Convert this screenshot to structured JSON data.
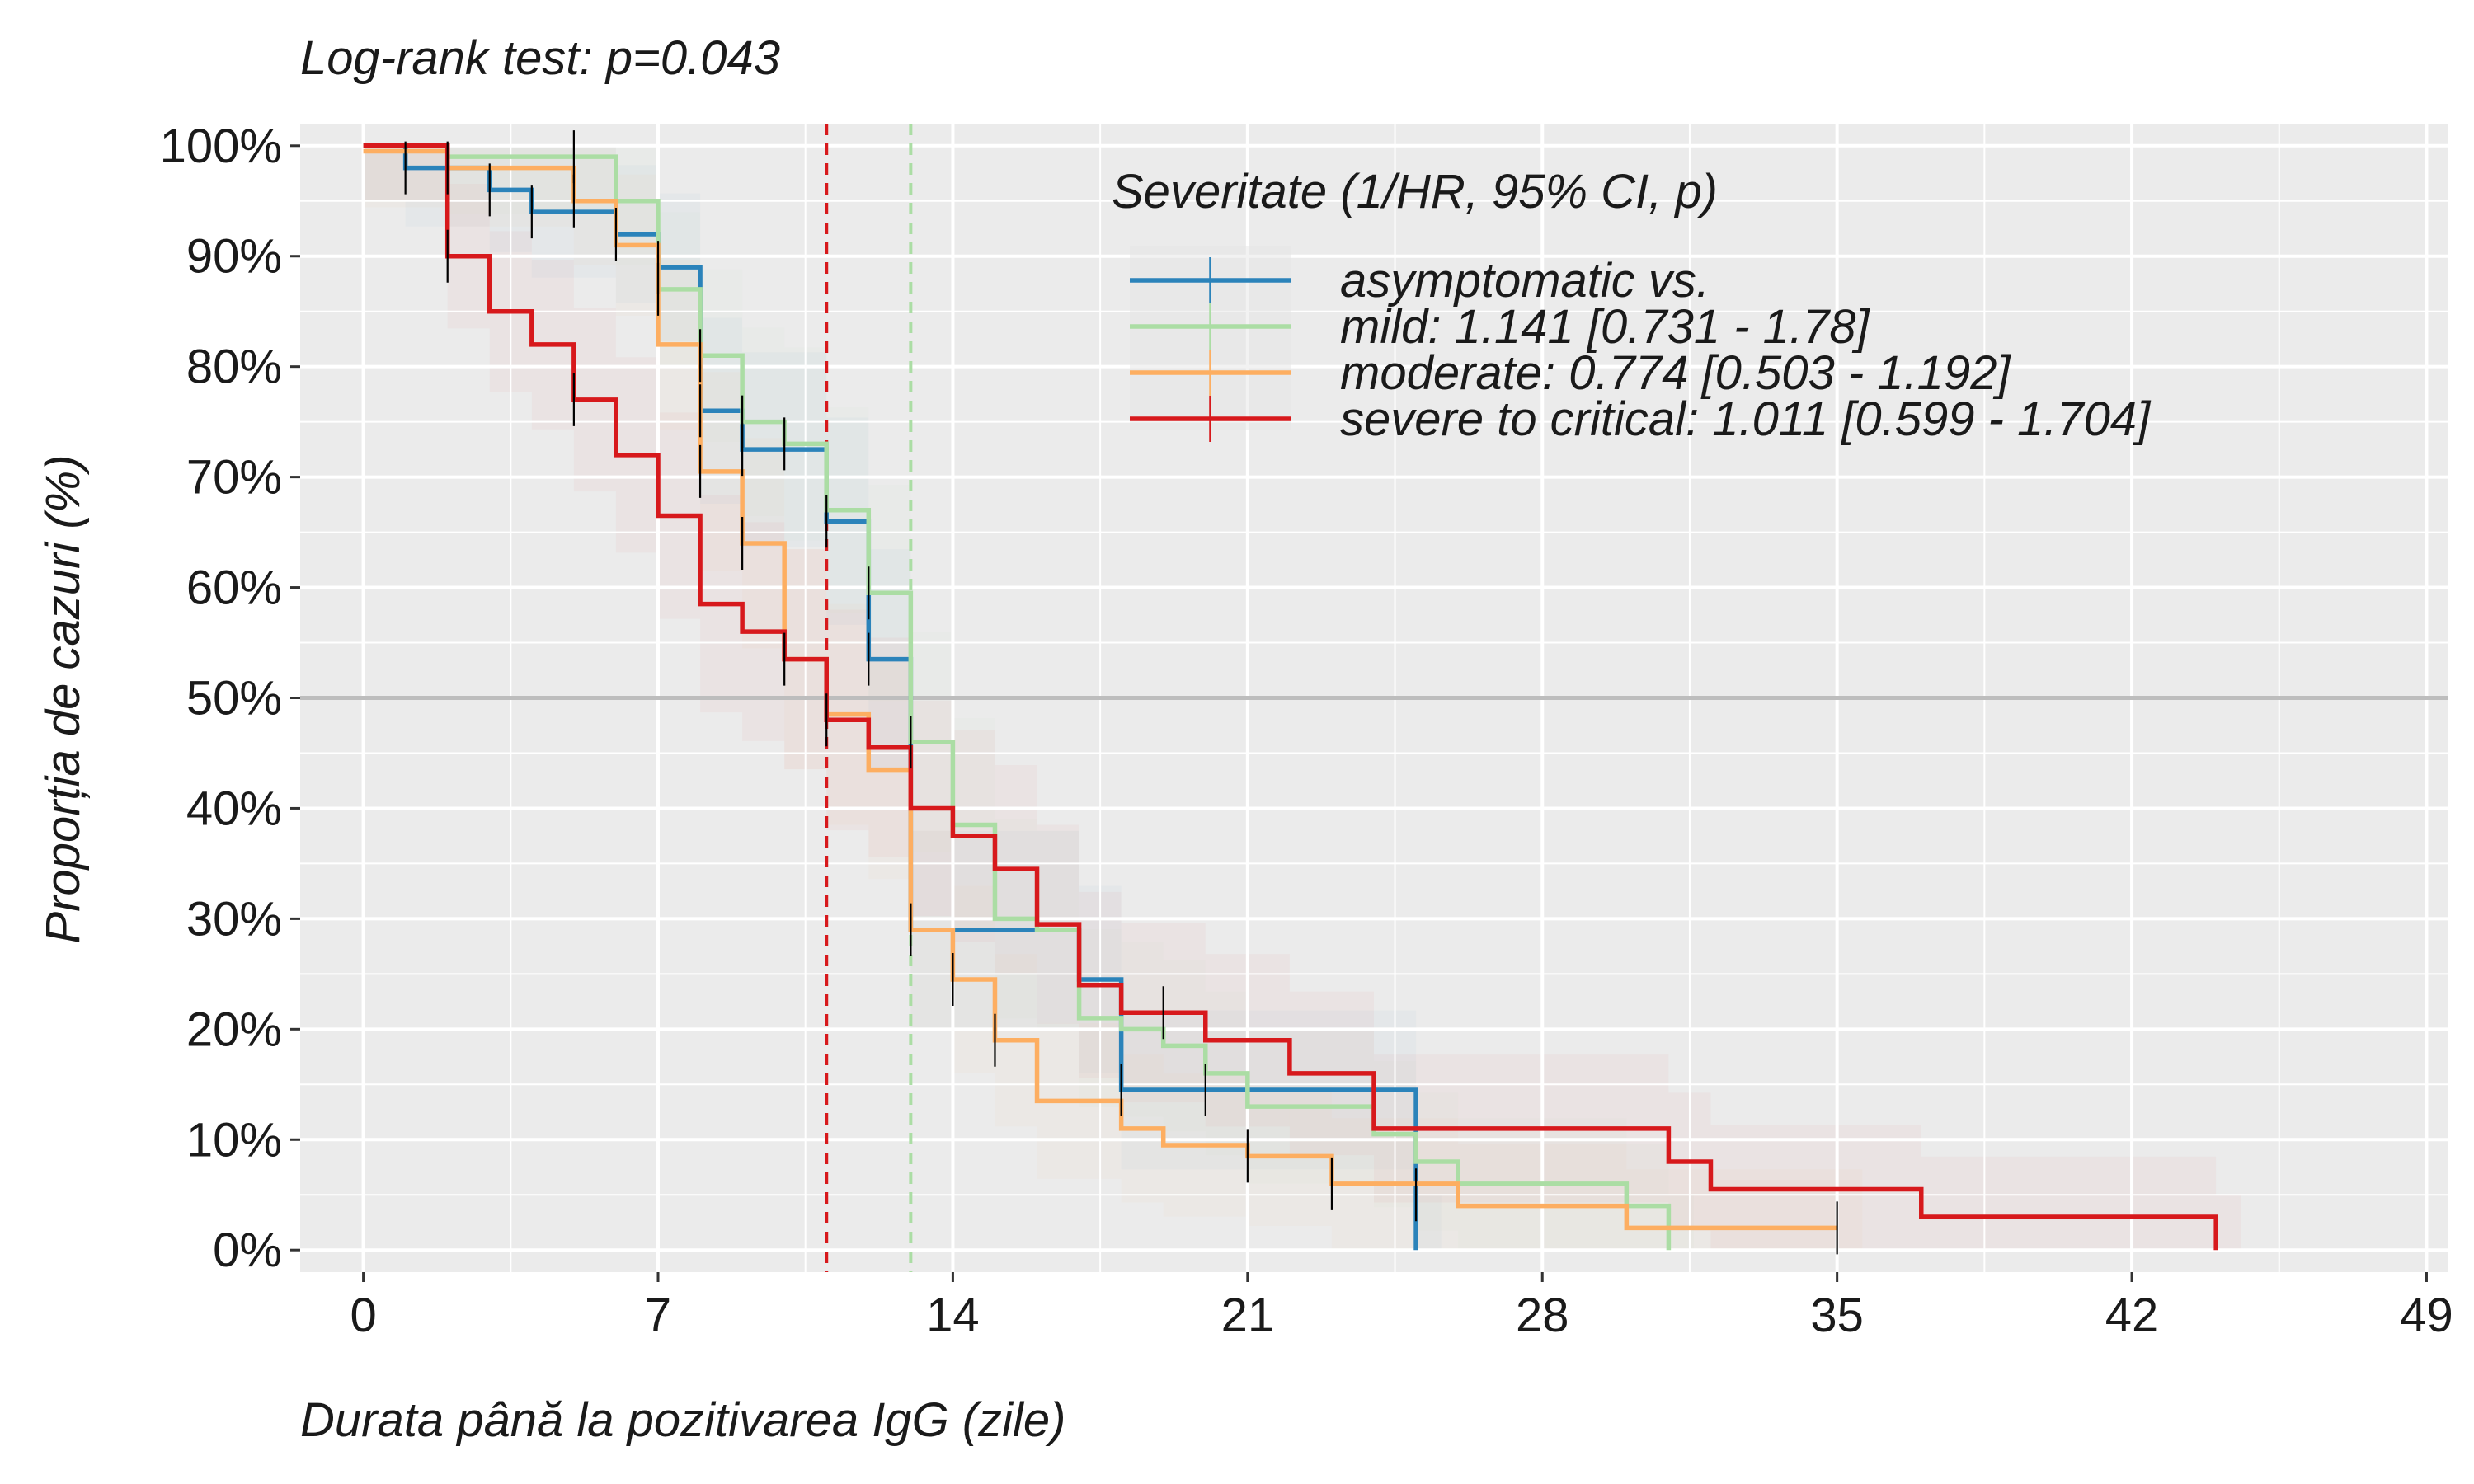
{
  "chart_data": {
    "type": "line",
    "subtitle": "Log-rank test: p=0.043",
    "xlabel": "Durata până la pozitivarea IgG (zile)",
    "ylabel": "Proporția de cazuri (%)",
    "xlim": [
      -1.5,
      49.5
    ],
    "ylim": [
      -0.02,
      1.02
    ],
    "x_ticks": [
      0,
      7,
      14,
      21,
      28,
      35,
      42,
      49
    ],
    "x_tick_labels": [
      "0",
      "7",
      "14",
      "21",
      "28",
      "35",
      "42",
      "49"
    ],
    "y_ticks": [
      0,
      0.1,
      0.2,
      0.3,
      0.4,
      0.5,
      0.6,
      0.7,
      0.8,
      0.9,
      1.0
    ],
    "y_tick_labels": [
      "0%",
      "10%",
      "20%",
      "30%",
      "40%",
      "50%",
      "60%",
      "70%",
      "80%",
      "90%",
      "100%"
    ],
    "grid": true,
    "reference_line_y": 0.5,
    "legend": {
      "title": "Severitate (1/HR, 95% CI, p)",
      "position": "top-right"
    },
    "colors": {
      "panel_background": "#ebebeb",
      "grid_line": "#ffffff",
      "reference_line": "#bdbdbd",
      "censor_tick": "#000000"
    },
    "series": [
      {
        "name": "asymptomatic vs.",
        "color": "#2b83ba",
        "steps": [
          [
            0,
            1.0
          ],
          [
            1,
            0.98
          ],
          [
            3,
            0.96
          ],
          [
            4,
            0.94
          ],
          [
            6,
            0.92
          ],
          [
            7,
            0.89
          ],
          [
            8,
            0.76
          ],
          [
            9,
            0.725
          ],
          [
            11,
            0.66
          ],
          [
            12,
            0.535
          ],
          [
            13,
            0.29
          ],
          [
            16,
            0.29
          ],
          [
            17,
            0.245
          ],
          [
            18,
            0.145
          ],
          [
            25,
            0.0
          ]
        ],
        "censored": [
          [
            1,
            0.98
          ],
          [
            3,
            0.96
          ],
          [
            4,
            0.94
          ],
          [
            6,
            0.92
          ],
          [
            7,
            0.89
          ],
          [
            8,
            0.76
          ],
          [
            9,
            0.725
          ],
          [
            11,
            0.66
          ],
          [
            12,
            0.535
          ],
          [
            13,
            0.29
          ],
          [
            18,
            0.145
          ],
          [
            20,
            0.145
          ],
          [
            25,
            0.05
          ]
        ],
        "median_line": null
      },
      {
        "name": "mild: 1.141 [0.731 - 1.78]",
        "color": "#abdda4",
        "steps": [
          [
            0,
            1.0
          ],
          [
            2,
            0.99
          ],
          [
            6,
            0.95
          ],
          [
            7,
            0.87
          ],
          [
            8,
            0.81
          ],
          [
            9,
            0.75
          ],
          [
            10,
            0.73
          ],
          [
            11,
            0.67
          ],
          [
            12,
            0.595
          ],
          [
            13,
            0.46
          ],
          [
            14,
            0.385
          ],
          [
            15,
            0.3
          ],
          [
            16,
            0.29
          ],
          [
            17,
            0.21
          ],
          [
            18,
            0.2
          ],
          [
            19,
            0.185
          ],
          [
            20,
            0.16
          ],
          [
            21,
            0.13
          ],
          [
            24,
            0.105
          ],
          [
            25,
            0.08
          ],
          [
            26,
            0.06
          ],
          [
            30,
            0.04
          ],
          [
            31,
            0.0
          ]
        ],
        "censored": [
          [
            5,
            0.99
          ],
          [
            7,
            0.87
          ],
          [
            8,
            0.81
          ],
          [
            9,
            0.75
          ],
          [
            10,
            0.73
          ],
          [
            12,
            0.595
          ],
          [
            13,
            0.46
          ]
        ],
        "median_line": 13
      },
      {
        "name": "moderate: 0.774 [0.503 - 1.192]",
        "color": "#fdae61",
        "steps": [
          [
            0,
            0.995
          ],
          [
            2,
            0.98
          ],
          [
            5,
            0.95
          ],
          [
            6,
            0.91
          ],
          [
            7,
            0.82
          ],
          [
            8,
            0.705
          ],
          [
            9,
            0.64
          ],
          [
            10,
            0.535
          ],
          [
            11,
            0.485
          ],
          [
            12,
            0.435
          ],
          [
            13,
            0.29
          ],
          [
            14,
            0.245
          ],
          [
            15,
            0.19
          ],
          [
            16,
            0.135
          ],
          [
            18,
            0.11
          ],
          [
            19,
            0.095
          ],
          [
            21,
            0.085
          ],
          [
            23,
            0.06
          ],
          [
            26,
            0.04
          ],
          [
            30,
            0.02
          ],
          [
            35,
            0.02
          ]
        ],
        "censored": [
          [
            2,
            0.98
          ],
          [
            5,
            0.95
          ],
          [
            8,
            0.705
          ],
          [
            9,
            0.64
          ],
          [
            13,
            0.29
          ],
          [
            14,
            0.245
          ],
          [
            15,
            0.19
          ],
          [
            21,
            0.085
          ],
          [
            23,
            0.06
          ],
          [
            35,
            0.02
          ]
        ],
        "median_line": null
      },
      {
        "name": "severe to critical: 1.011 [0.599 - 1.704]",
        "color": "#d7191c",
        "steps": [
          [
            0,
            1.0
          ],
          [
            2,
            0.9
          ],
          [
            3,
            0.85
          ],
          [
            4,
            0.82
          ],
          [
            5,
            0.77
          ],
          [
            6,
            0.72
          ],
          [
            7,
            0.665
          ],
          [
            8,
            0.585
          ],
          [
            9,
            0.56
          ],
          [
            10,
            0.535
          ],
          [
            11,
            0.48
          ],
          [
            12,
            0.455
          ],
          [
            13,
            0.4
          ],
          [
            14,
            0.375
          ],
          [
            15,
            0.345
          ],
          [
            16,
            0.295
          ],
          [
            17,
            0.24
          ],
          [
            18,
            0.215
          ],
          [
            20,
            0.19
          ],
          [
            22,
            0.16
          ],
          [
            24,
            0.11
          ],
          [
            31,
            0.08
          ],
          [
            32,
            0.055
          ],
          [
            37,
            0.03
          ],
          [
            44,
            0.0
          ]
        ],
        "censored": [
          [
            2,
            0.9
          ],
          [
            5,
            0.77
          ],
          [
            10,
            0.535
          ],
          [
            11,
            0.48
          ],
          [
            19,
            0.215
          ]
        ],
        "median_line": 11
      }
    ]
  }
}
